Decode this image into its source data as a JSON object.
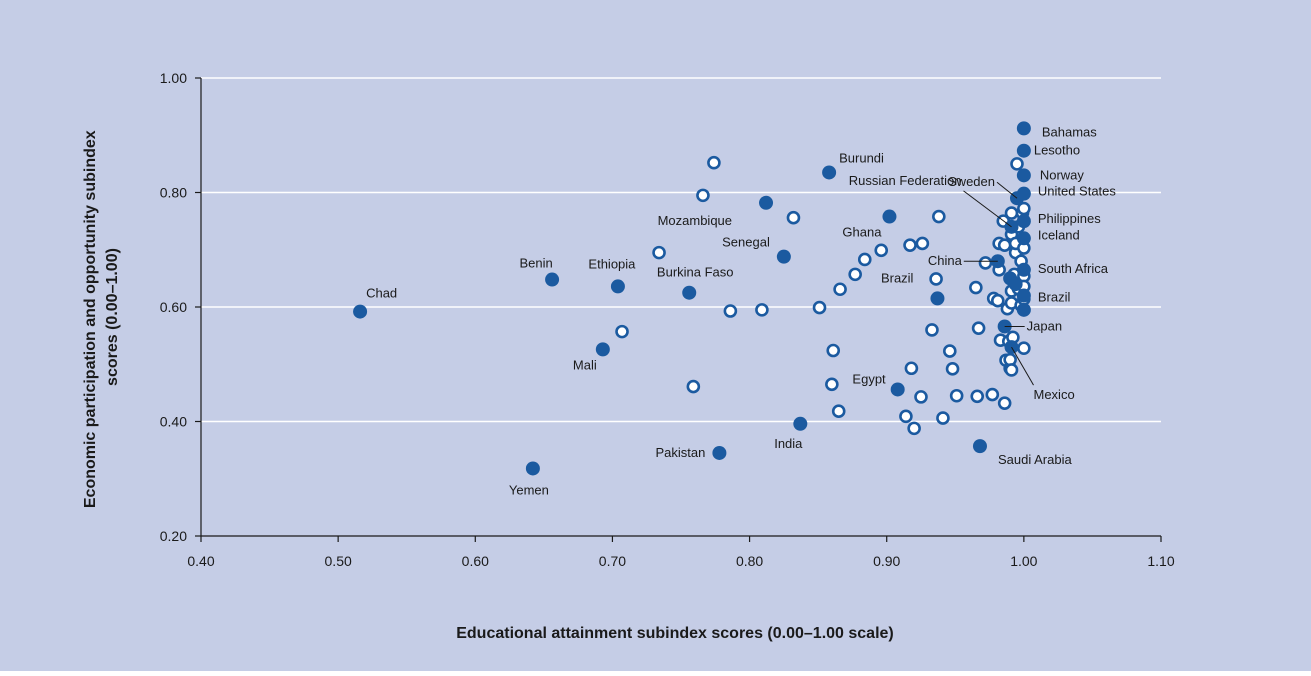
{
  "chart_data": {
    "type": "scatter",
    "xlabel": "Educational attainment subindex scores (0.00–1.00 scale)",
    "ylabel_lines": [
      "Economic participation and opportunity subindex",
      "scores (0.00–1.00)"
    ],
    "xlim": [
      0.4,
      1.1
    ],
    "ylim": [
      0.2,
      1.0
    ],
    "x_ticks": [
      "0.40",
      "0.50",
      "0.60",
      "0.70",
      "0.80",
      "0.90",
      "1.00",
      "1.10"
    ],
    "y_ticks": [
      "0.20",
      "0.40",
      "0.60",
      "0.80",
      "1.00"
    ],
    "grid": "horizontal",
    "colors": {
      "background": "#c5cde6",
      "filled_marker": "#1b5aa0",
      "open_marker_stroke": "#1b5aa0",
      "open_marker_fill": "#ffffff",
      "gridline": "#ffffff",
      "axis": "#1a1a1a"
    },
    "labeled_points": [
      {
        "label": "Chad",
        "x": 0.516,
        "y": 0.592
      },
      {
        "label": "Yemen",
        "x": 0.642,
        "y": 0.318
      },
      {
        "label": "Benin",
        "x": 0.656,
        "y": 0.648
      },
      {
        "label": "Mali",
        "x": 0.693,
        "y": 0.526
      },
      {
        "label": "Ethiopia",
        "x": 0.704,
        "y": 0.636
      },
      {
        "label": "Burkina Faso",
        "x": 0.756,
        "y": 0.625
      },
      {
        "label": "Pakistan",
        "x": 0.778,
        "y": 0.345
      },
      {
        "label": "Mozambique",
        "x": 0.812,
        "y": 0.782
      },
      {
        "label": "Senegal",
        "x": 0.825,
        "y": 0.688
      },
      {
        "label": "India",
        "x": 0.837,
        "y": 0.396
      },
      {
        "label": "Burundi",
        "x": 0.858,
        "y": 0.835
      },
      {
        "label": "Ghana",
        "x": 0.902,
        "y": 0.758
      },
      {
        "label": "Egypt",
        "x": 0.908,
        "y": 0.456
      },
      {
        "label": "Saudi Arabia",
        "x": 0.968,
        "y": 0.357
      },
      {
        "label": "China",
        "x": 0.981,
        "y": 0.68
      },
      {
        "label": "Brazil",
        "x": 0.937,
        "y": 0.615
      },
      {
        "label": "Russian Federation",
        "x": 0.991,
        "y": 0.74
      },
      {
        "label": "Sweden",
        "x": 0.995,
        "y": 0.79
      },
      {
        "label": "Japan",
        "x": 0.986,
        "y": 0.566
      },
      {
        "label": "Mexico",
        "x": 0.991,
        "y": 0.53
      },
      {
        "label": "Bahamas",
        "x": 1.0,
        "y": 0.912
      },
      {
        "label": "Lesotho",
        "x": 1.0,
        "y": 0.873
      },
      {
        "label": "Norway",
        "x": 1.0,
        "y": 0.83
      },
      {
        "label": "United States",
        "x": 1.0,
        "y": 0.798
      },
      {
        "label": "Philippines",
        "x": 1.0,
        "y": 0.75
      },
      {
        "label": "Iceland",
        "x": 1.0,
        "y": 0.72
      },
      {
        "label": "South Africa",
        "x": 1.0,
        "y": 0.665
      },
      {
        "label": "Brazil",
        "x": 1.0,
        "y": 0.62
      }
    ],
    "filled_points": [
      {
        "x": 0.99,
        "y": 0.65
      },
      {
        "x": 0.994,
        "y": 0.64
      },
      {
        "x": 1.0,
        "y": 0.595
      }
    ],
    "open_points": [
      {
        "x": 0.774,
        "y": 0.852
      },
      {
        "x": 0.766,
        "y": 0.795
      },
      {
        "x": 0.832,
        "y": 0.756
      },
      {
        "x": 0.734,
        "y": 0.695
      },
      {
        "x": 0.707,
        "y": 0.557
      },
      {
        "x": 0.786,
        "y": 0.593
      },
      {
        "x": 0.809,
        "y": 0.595
      },
      {
        "x": 0.759,
        "y": 0.461
      },
      {
        "x": 0.851,
        "y": 0.599
      },
      {
        "x": 0.866,
        "y": 0.631
      },
      {
        "x": 0.877,
        "y": 0.657
      },
      {
        "x": 0.884,
        "y": 0.683
      },
      {
        "x": 0.896,
        "y": 0.699
      },
      {
        "x": 0.917,
        "y": 0.708
      },
      {
        "x": 0.926,
        "y": 0.711
      },
      {
        "x": 0.938,
        "y": 0.758
      },
      {
        "x": 0.936,
        "y": 0.649
      },
      {
        "x": 0.861,
        "y": 0.524
      },
      {
        "x": 0.86,
        "y": 0.465
      },
      {
        "x": 0.865,
        "y": 0.418
      },
      {
        "x": 0.918,
        "y": 0.493
      },
      {
        "x": 0.925,
        "y": 0.443
      },
      {
        "x": 0.914,
        "y": 0.409
      },
      {
        "x": 0.92,
        "y": 0.388
      },
      {
        "x": 0.933,
        "y": 0.56
      },
      {
        "x": 0.946,
        "y": 0.523
      },
      {
        "x": 0.948,
        "y": 0.492
      },
      {
        "x": 0.951,
        "y": 0.445
      },
      {
        "x": 0.941,
        "y": 0.406
      },
      {
        "x": 0.966,
        "y": 0.444
      },
      {
        "x": 0.977,
        "y": 0.447
      },
      {
        "x": 0.986,
        "y": 0.432
      },
      {
        "x": 0.965,
        "y": 0.634
      },
      {
        "x": 0.967,
        "y": 0.563
      },
      {
        "x": 0.972,
        "y": 0.677
      },
      {
        "x": 0.978,
        "y": 0.615
      },
      {
        "x": 0.981,
        "y": 0.611
      },
      {
        "x": 0.982,
        "y": 0.665
      },
      {
        "x": 0.982,
        "y": 0.711
      },
      {
        "x": 0.983,
        "y": 0.542
      },
      {
        "x": 0.985,
        "y": 0.75
      },
      {
        "x": 0.986,
        "y": 0.708
      },
      {
        "x": 0.987,
        "y": 0.507
      },
      {
        "x": 0.988,
        "y": 0.597
      },
      {
        "x": 0.989,
        "y": 0.54
      },
      {
        "x": 0.99,
        "y": 0.493
      },
      {
        "x": 0.99,
        "y": 0.508
      },
      {
        "x": 0.991,
        "y": 0.764
      },
      {
        "x": 0.991,
        "y": 0.727
      },
      {
        "x": 0.991,
        "y": 0.628
      },
      {
        "x": 0.991,
        "y": 0.607
      },
      {
        "x": 0.991,
        "y": 0.49
      },
      {
        "x": 0.992,
        "y": 0.547
      },
      {
        "x": 0.993,
        "y": 0.657
      },
      {
        "x": 0.994,
        "y": 0.695
      },
      {
        "x": 0.994,
        "y": 0.711
      },
      {
        "x": 0.995,
        "y": 0.85
      },
      {
        "x": 0.996,
        "y": 0.632
      },
      {
        "x": 0.998,
        "y": 0.603
      },
      {
        "x": 0.999,
        "y": 0.764
      },
      {
        "x": 1.0,
        "y": 0.772
      },
      {
        "x": 1.0,
        "y": 0.703
      },
      {
        "x": 1.0,
        "y": 0.654
      },
      {
        "x": 1.0,
        "y": 0.636
      },
      {
        "x": 1.0,
        "y": 0.614
      },
      {
        "x": 1.0,
        "y": 0.528
      },
      {
        "x": 0.998,
        "y": 0.68
      },
      {
        "x": 0.996,
        "y": 0.74
      }
    ]
  }
}
